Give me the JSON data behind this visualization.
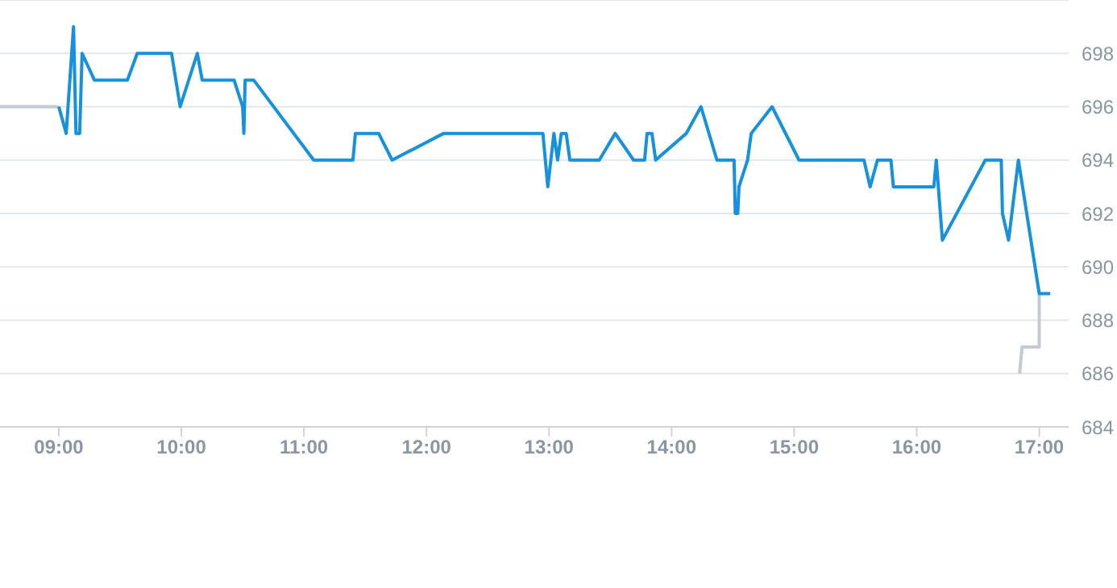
{
  "chart_data": {
    "type": "line",
    "xlim": [
      8.52,
      17.24
    ],
    "xticks": [
      {
        "value": 9,
        "label": "09:00"
      },
      {
        "value": 10,
        "label": "10:00"
      },
      {
        "value": 11,
        "label": "11:00"
      },
      {
        "value": 12,
        "label": "12:00"
      },
      {
        "value": 13,
        "label": "13:00"
      },
      {
        "value": 14,
        "label": "14:00"
      },
      {
        "value": 15,
        "label": "15:00"
      },
      {
        "value": 16,
        "label": "16:00"
      },
      {
        "value": 17,
        "label": "17:00"
      }
    ],
    "ylim": [
      684,
      700
    ],
    "yticks": [
      684,
      686,
      688,
      690,
      692,
      694,
      696,
      698,
      {
        "value": 700,
        "label": null
      }
    ],
    "grid": "y",
    "marker": "none",
    "line_style": "solid",
    "series": [
      {
        "color": "#c2cad3",
        "x": [
          8.52,
          9.0,
          12.0,
          16.84,
          16.86,
          17.0,
          17.0
        ],
        "values": [
          696,
          696,
          null,
          686,
          687,
          687,
          689
        ]
      },
      {
        "color": "#1591dd",
        "x": [
          9.0,
          9.06,
          9.12,
          9.14,
          9.17,
          9.19,
          9.29,
          9.56,
          9.64,
          9.92,
          9.99,
          10.13,
          10.17,
          10.43,
          10.5,
          10.51,
          10.52,
          10.59,
          11.08,
          11.4,
          11.42,
          11.61,
          11.72,
          12.14,
          12.95,
          12.99,
          13.04,
          13.07,
          13.1,
          13.14,
          13.17,
          13.41,
          13.54,
          13.69,
          13.78,
          13.8,
          13.84,
          13.87,
          14.12,
          14.24,
          14.37,
          14.51,
          14.52,
          14.54,
          14.55,
          14.62,
          14.65,
          14.82,
          15.04,
          15.57,
          15.62,
          15.68,
          15.79,
          15.81,
          16.14,
          16.16,
          16.21,
          16.56,
          16.69,
          16.7,
          16.75,
          16.83,
          17.0,
          17.09
        ],
        "values": [
          696,
          695,
          699,
          695,
          695,
          698,
          697,
          697,
          698,
          698,
          696,
          698,
          697,
          697,
          696,
          695,
          697,
          697,
          694,
          694,
          695,
          695,
          694,
          695,
          695,
          693,
          695,
          694,
          695,
          695,
          694,
          694,
          695,
          694,
          694,
          695,
          695,
          694,
          695,
          696,
          694,
          694,
          692,
          692,
          693,
          694,
          695,
          696,
          694,
          694,
          693,
          694,
          694,
          693,
          693,
          694,
          691,
          694,
          694,
          692,
          691,
          694,
          689,
          689
        ]
      }
    ]
  }
}
